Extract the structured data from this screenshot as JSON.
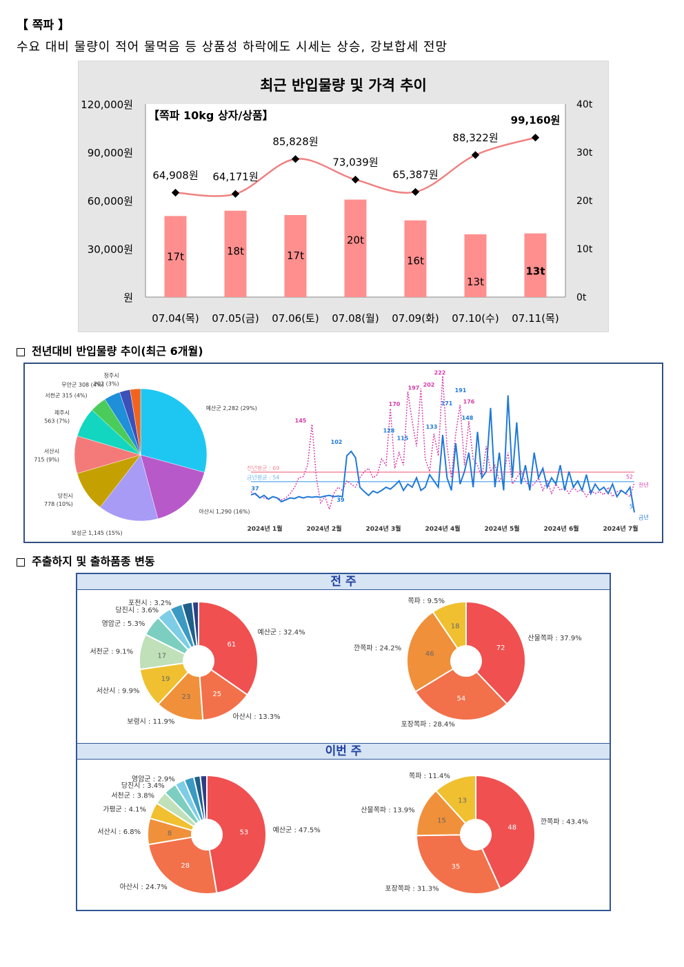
{
  "header": {
    "title": "【 쪽파 】",
    "subtitle": "수요 대비 물량이 적어 물먹음 등 상품성 하락에도 시세는 상승, 강보합세 전망"
  },
  "sections": {
    "s2": "전년대비 반입물량 추이(최근 6개월)",
    "s3": "주출하지 및 출하품종 변동"
  },
  "chart_data": [
    {
      "type": "bar",
      "title": "최근 반입물량 및 가격 추이",
      "annotation": "【쪽파 10kg 상자/상품】",
      "categories": [
        "07.04(목)",
        "07.05(금)",
        "07.06(토)",
        "07.08(월)",
        "07.09(화)",
        "07.10(수)",
        "07.11(목)"
      ],
      "series": [
        {
          "type": "bar",
          "axis": "right",
          "values": [
            16.8,
            17.9,
            17.0,
            20.2,
            15.9,
            13.0,
            13.2
          ],
          "labels": [
            "17t",
            "18t",
            "17t",
            "20t",
            "16t",
            "13t",
            "13t"
          ],
          "color": "#ff8f8f"
        },
        {
          "type": "line",
          "axis": "left",
          "values": [
            64908,
            64171,
            85828,
            73039,
            65387,
            88322,
            99160
          ],
          "labels": [
            "64,908원",
            "64,171원",
            "85,828원",
            "73,039원",
            "65,387원",
            "88,322원",
            "99,160원"
          ],
          "color": "#f08080"
        }
      ],
      "y_left": {
        "ticks": [
          "120,000원",
          "90,000원",
          "60,000원",
          "30,000원",
          "원"
        ],
        "range": [
          0,
          120000
        ]
      },
      "y_right": {
        "ticks": [
          "40t",
          "30t",
          "20t",
          "10t",
          "0t"
        ],
        "range": [
          0,
          40
        ]
      }
    },
    {
      "type": "pie",
      "slices": [
        {
          "label": "예산군 2,282 (29%)",
          "value": 2282,
          "color": "#1ec7f2"
        },
        {
          "label": "아산시 1,290 (16%)",
          "value": 1290,
          "color": "#b859c9"
        },
        {
          "label": "보성군 1,145 (15%)",
          "value": 1145,
          "color": "#a79bf6"
        },
        {
          "label": "당진시\n778 (10%)",
          "value": 778,
          "color": "#c4a100"
        },
        {
          "label": "서산시\n715 (9%)",
          "value": 715,
          "color": "#f47a7a"
        },
        {
          "label": "제주시\n563 (7%)",
          "value": 563,
          "color": "#12d6bf"
        },
        {
          "label": "서천군 315 (4%)",
          "value": 315,
          "color": "#4bcc5a"
        },
        {
          "label": "무안군 308 (4%)",
          "value": 308,
          "color": "#1e8fd8"
        },
        {
          "label": "청주시\n202 (3%)",
          "value": 202,
          "color": "#3d4fb8"
        },
        {
          "label": "",
          "value": 200,
          "color": "#f2641e"
        }
      ]
    },
    {
      "type": "line",
      "x_ticks": [
        "2024년 1월",
        "2024년 2월",
        "2024년 3월",
        "2024년 4월",
        "2024년 5월",
        "2024년 6월",
        "2024년 7월"
      ],
      "ylim": [
        0,
        230
      ],
      "ref_lines": [
        {
          "label": "전년평균 : 69",
          "value": 69,
          "color": "#f08c9c"
        },
        {
          "label": "금년평균 : 54",
          "value": 54,
          "color": "#6fb7f0"
        }
      ],
      "series": [
        {
          "name": "전년",
          "color": "#d63aa8",
          "end_label": "52",
          "values": [
            38,
            33,
            30,
            28,
            26,
            30,
            28,
            25,
            28,
            35,
            45,
            60,
            62,
            80,
            145,
            60,
            20,
            30,
            10,
            35,
            45,
            40,
            55,
            50,
            45,
            60,
            70,
            75,
            60,
            65,
            90,
            80,
            170,
            75,
            100,
            80,
            197,
            150,
            110,
            202,
            90,
            70,
            130,
            95,
            222,
            110,
            60,
            130,
            176,
            80,
            150,
            90,
            80,
            60,
            110,
            70,
            80,
            55,
            65,
            100,
            50,
            60,
            70,
            55,
            45,
            50,
            60,
            40,
            55,
            35,
            50,
            40,
            45,
            35,
            45,
            38,
            42,
            30,
            40,
            35,
            38,
            33,
            45,
            30,
            38,
            40,
            35,
            30,
            52
          ]
        },
        {
          "name": "금년",
          "color": "#1f78d8",
          "end_label": "5",
          "values": [
            33,
            35,
            28,
            32,
            26,
            30,
            28,
            22,
            25,
            28,
            27,
            30,
            28,
            30,
            29,
            30,
            29,
            31,
            32,
            30,
            31,
            30,
            95,
            102,
            92,
            45,
            38,
            32,
            39,
            36,
            40,
            45,
            42,
            48,
            55,
            40,
            50,
            45,
            60,
            40,
            45,
            65,
            55,
            45,
            128,
            60,
            40,
            115,
            50,
            70,
            100,
            45,
            133,
            60,
            70,
            171,
            45,
            100,
            40,
            191,
            60,
            148,
            50,
            80,
            40,
            100,
            60,
            75,
            45,
            60,
            50,
            80,
            40,
            70,
            45,
            55,
            40,
            65,
            35,
            50,
            40,
            45,
            35,
            50,
            30,
            40,
            35,
            45,
            5
          ]
        }
      ],
      "point_labels": [
        "37",
        "102",
        "39",
        "128",
        "115",
        "133",
        "171",
        "191",
        "148",
        "145",
        "170",
        "197",
        "202",
        "222",
        "176"
      ]
    },
    {
      "type": "pie",
      "panel": "전 주",
      "slices": [
        {
          "label": "예산군 : 32.4%",
          "value": 61,
          "inner": "61",
          "color": "#f05050"
        },
        {
          "label": "아산시 : 13.3%",
          "value": 25,
          "inner": "25",
          "color": "#f2704a"
        },
        {
          "label": "보령시 : 11.9%",
          "value": 23,
          "inner": "23",
          "color": "#f0903a"
        },
        {
          "label": "서산시 : 9.9%",
          "value": 19,
          "inner": "19",
          "color": "#f0c030"
        },
        {
          "label": "서천군 : 9.1%",
          "value": 17,
          "inner": "17",
          "color": "#bfe0b8"
        },
        {
          "label": "영암군 : 5.3%",
          "value": 10,
          "inner": "",
          "color": "#7ccfc0"
        },
        {
          "label": "당진시 : 3.6%",
          "value": 7,
          "inner": "",
          "color": "#7dcde6"
        },
        {
          "label": "포천시 : 3.2%",
          "value": 6,
          "inner": "",
          "color": "#3b9ac3"
        },
        {
          "label": "",
          "value": 5,
          "inner": "",
          "color": "#1e5f8c"
        },
        {
          "label": "",
          "value": 3,
          "inner": "",
          "color": "#2c3f86"
        }
      ]
    },
    {
      "type": "pie",
      "panel": "전 주",
      "slices": [
        {
          "label": "산물쪽파 : 37.9%",
          "value": 72,
          "inner": "72",
          "color": "#f05050"
        },
        {
          "label": "포장쪽파 : 28.4%",
          "value": 54,
          "inner": "54",
          "color": "#f2704a"
        },
        {
          "label": "깐쪽파 : 24.2%",
          "value": 46,
          "inner": "46",
          "color": "#f0903a"
        },
        {
          "label": "쪽파 : 9.5%",
          "value": 18,
          "inner": "18",
          "color": "#f0c030"
        }
      ]
    },
    {
      "type": "pie",
      "panel": "이번 주",
      "slices": [
        {
          "label": "예산군 : 47.5%",
          "value": 53,
          "inner": "53",
          "color": "#f05050"
        },
        {
          "label": "아산시 : 24.7%",
          "value": 28,
          "inner": "28",
          "color": "#f2704a"
        },
        {
          "label": "서산시 : 6.8%",
          "value": 8,
          "inner": "8",
          "color": "#f0903a"
        },
        {
          "label": "가평군 : 4.1%",
          "value": 5,
          "inner": "",
          "color": "#f0c030"
        },
        {
          "label": "서천군 : 3.8%",
          "value": 4,
          "inner": "",
          "color": "#bfe0b8"
        },
        {
          "label": "당진시 : 3.4%",
          "value": 4,
          "inner": "",
          "color": "#7ccfc0"
        },
        {
          "label": "영암군 : 2.9%",
          "value": 3,
          "inner": "",
          "color": "#7dcde6"
        },
        {
          "label": "",
          "value": 3,
          "inner": "",
          "color": "#3b9ac3"
        },
        {
          "label": "",
          "value": 2,
          "inner": "",
          "color": "#1e5f8c"
        },
        {
          "label": "",
          "value": 2,
          "inner": "",
          "color": "#2c3f86"
        }
      ]
    },
    {
      "type": "pie",
      "panel": "이번 주",
      "slices": [
        {
          "label": "깐쪽파 : 43.4%",
          "value": 48,
          "inner": "48",
          "color": "#f05050"
        },
        {
          "label": "포장쪽파 : 31.3%",
          "value": 35,
          "inner": "35",
          "color": "#f2704a"
        },
        {
          "label": "산물쪽파 : 13.9%",
          "value": 15,
          "inner": "15",
          "color": "#f0903a"
        },
        {
          "label": "쪽파 : 11.4%",
          "value": 13,
          "inner": "13",
          "color": "#f0c030"
        }
      ]
    }
  ],
  "panels": {
    "last_week": "전 주",
    "this_week": "이번 주"
  }
}
